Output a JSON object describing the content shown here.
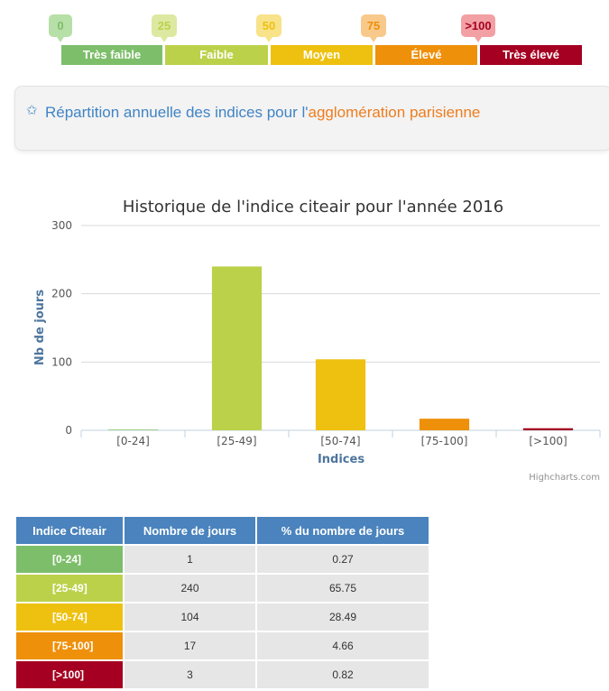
{
  "scale": {
    "ticks": [
      {
        "label": "0",
        "color": "#7dbe6a",
        "tint": "#b7dfa8"
      },
      {
        "label": "25",
        "color": "#bcd14a",
        "tint": "#dde8a1"
      },
      {
        "label": "50",
        "color": "#eec110",
        "tint": "#f8e28a"
      },
      {
        "label": "75",
        "color": "#ee900a",
        "tint": "#f8c98a"
      },
      {
        "label": ">100",
        "color": "#a50021",
        "tint": "#f2a0a4"
      }
    ],
    "bands": [
      {
        "label": "Très faible",
        "color": "#7dbe6a"
      },
      {
        "label": "Faible",
        "color": "#bcd14a"
      },
      {
        "label": "Moyen",
        "color": "#eec110"
      },
      {
        "label": "Élevé",
        "color": "#ee900a"
      },
      {
        "label": "Très élevé",
        "color": "#a50021"
      }
    ]
  },
  "section": {
    "title_part1": "Répartition annuelle des indices pour l'",
    "title_part2": "agglomération parisienne"
  },
  "chart_data": {
    "type": "bar",
    "title": "Historique de l'indice citeair pour l'année 2016",
    "xlabel": "Indices",
    "ylabel": "Nb de jours",
    "categories": [
      "[0-24]",
      "[25-49]",
      "[50-74]",
      "[75-100]",
      "[>100]"
    ],
    "values": [
      1,
      240,
      104,
      17,
      3
    ],
    "colors": [
      "#7dbe6a",
      "#bcd14a",
      "#eec110",
      "#ee900a",
      "#a50021"
    ],
    "ylim": [
      0,
      300
    ],
    "yticks": [
      0,
      100,
      200,
      300
    ],
    "grid": true,
    "credits": "Highcharts.com"
  },
  "table": {
    "headers": [
      "Indice Citeair",
      "Nombre de jours",
      "% du nombre de jours"
    ],
    "rows": [
      {
        "cls": "[0-24]",
        "days": "1",
        "pct": "0.27",
        "color": "#7dbe6a"
      },
      {
        "cls": "[25-49]",
        "days": "240",
        "pct": "65.75",
        "color": "#bcd14a"
      },
      {
        "cls": "[50-74]",
        "days": "104",
        "pct": "28.49",
        "color": "#eec110"
      },
      {
        "cls": "[75-100]",
        "days": "17",
        "pct": "4.66",
        "color": "#ee900a"
      },
      {
        "cls": "[>100]",
        "days": "3",
        "pct": "0.82",
        "color": "#a50021"
      }
    ]
  }
}
